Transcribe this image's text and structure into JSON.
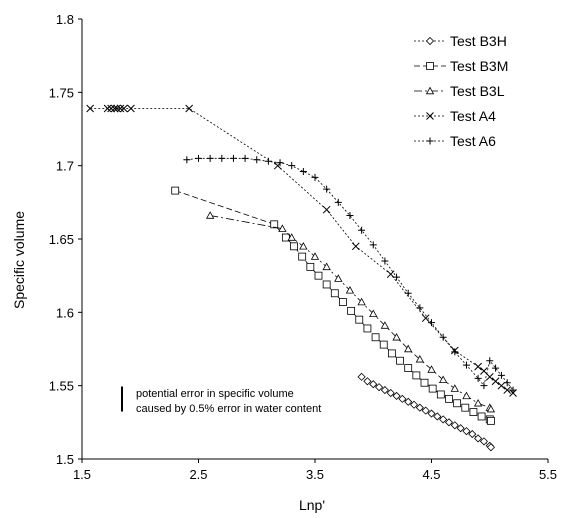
{
  "chart_data": {
    "type": "scatter",
    "title": "",
    "xlabel": "Lnp'",
    "ylabel": "Specific volume",
    "xlim": [
      1.5,
      5.5
    ],
    "ylim": [
      1.5,
      1.8
    ],
    "x_ticks": [
      "1.5",
      "2.5",
      "3.5",
      "4.5",
      "5.5"
    ],
    "y_ticks": [
      "1.5",
      "1.55",
      "1.6",
      "1.65",
      "1.7",
      "1.75",
      "1.8"
    ],
    "grid": false,
    "legend_position": "top-right",
    "annotation": {
      "line1": "potential error in specific volume",
      "line2": "caused by 0.5% error in water content",
      "error_bar_dv": 0.017
    },
    "series": [
      {
        "name": "Test B3H",
        "marker": "diamond",
        "dash": "2,2",
        "points": [
          [
            3.9,
            1.556
          ],
          [
            3.95,
            1.553
          ],
          [
            4.0,
            1.551
          ],
          [
            4.05,
            1.549
          ],
          [
            4.1,
            1.547
          ],
          [
            4.15,
            1.545
          ],
          [
            4.2,
            1.543
          ],
          [
            4.25,
            1.541
          ],
          [
            4.3,
            1.539
          ],
          [
            4.35,
            1.537
          ],
          [
            4.4,
            1.535
          ],
          [
            4.45,
            1.533
          ],
          [
            4.5,
            1.531
          ],
          [
            4.55,
            1.529
          ],
          [
            4.6,
            1.527
          ],
          [
            4.65,
            1.525
          ],
          [
            4.7,
            1.523
          ],
          [
            4.75,
            1.521
          ],
          [
            4.8,
            1.519
          ],
          [
            4.85,
            1.517
          ],
          [
            4.9,
            1.514
          ],
          [
            4.95,
            1.512
          ],
          [
            5.0,
            1.509
          ],
          [
            5.01,
            1.508
          ]
        ]
      },
      {
        "name": "Test B3M",
        "marker": "square",
        "dash": "6,3",
        "points": [
          [
            2.3,
            1.683
          ],
          [
            3.15,
            1.66
          ],
          [
            3.25,
            1.651
          ],
          [
            3.32,
            1.645
          ],
          [
            3.39,
            1.638
          ],
          [
            3.46,
            1.631
          ],
          [
            3.53,
            1.625
          ],
          [
            3.6,
            1.619
          ],
          [
            3.67,
            1.613
          ],
          [
            3.74,
            1.607
          ],
          [
            3.81,
            1.601
          ],
          [
            3.88,
            1.595
          ],
          [
            3.95,
            1.589
          ],
          [
            4.02,
            1.583
          ],
          [
            4.09,
            1.578
          ],
          [
            4.16,
            1.572
          ],
          [
            4.23,
            1.567
          ],
          [
            4.3,
            1.562
          ],
          [
            4.37,
            1.557
          ],
          [
            4.44,
            1.552
          ],
          [
            4.51,
            1.548
          ],
          [
            4.58,
            1.544
          ],
          [
            4.65,
            1.541
          ],
          [
            4.72,
            1.538
          ],
          [
            4.79,
            1.535
          ],
          [
            4.86,
            1.532
          ],
          [
            4.93,
            1.529
          ],
          [
            5.0,
            1.527
          ],
          [
            5.01,
            1.526
          ]
        ]
      },
      {
        "name": "Test B3L",
        "marker": "triangle",
        "dash": "8,3,2,3",
        "points": [
          [
            2.6,
            1.666
          ],
          [
            3.22,
            1.657
          ],
          [
            3.3,
            1.651
          ],
          [
            3.4,
            1.645
          ],
          [
            3.5,
            1.638
          ],
          [
            3.6,
            1.631
          ],
          [
            3.7,
            1.623
          ],
          [
            3.8,
            1.615
          ],
          [
            3.9,
            1.607
          ],
          [
            4.0,
            1.599
          ],
          [
            4.1,
            1.591
          ],
          [
            4.2,
            1.583
          ],
          [
            4.3,
            1.575
          ],
          [
            4.4,
            1.568
          ],
          [
            4.5,
            1.561
          ],
          [
            4.6,
            1.554
          ],
          [
            4.7,
            1.548
          ],
          [
            4.8,
            1.543
          ],
          [
            4.9,
            1.538
          ],
          [
            5.0,
            1.535
          ],
          [
            5.01,
            1.534
          ]
        ]
      },
      {
        "name": "Test A4",
        "marker": "x",
        "dash": "2,2",
        "points": [
          [
            1.57,
            1.739
          ],
          [
            1.72,
            1.739
          ],
          [
            1.75,
            1.739
          ],
          [
            1.78,
            1.739
          ],
          [
            1.8,
            1.739
          ],
          [
            1.83,
            1.739
          ],
          [
            1.86,
            1.739
          ],
          [
            1.92,
            1.739
          ],
          [
            2.42,
            1.739
          ],
          [
            3.18,
            1.7
          ],
          [
            3.6,
            1.67
          ],
          [
            3.85,
            1.645
          ],
          [
            4.15,
            1.626
          ],
          [
            4.45,
            1.596
          ],
          [
            4.7,
            1.574
          ],
          [
            4.9,
            1.563
          ],
          [
            4.95,
            1.56
          ],
          [
            5.0,
            1.556
          ],
          [
            5.05,
            1.553
          ],
          [
            5.1,
            1.55
          ],
          [
            5.15,
            1.547
          ],
          [
            5.2,
            1.545
          ]
        ]
      },
      {
        "name": "Test A6",
        "marker": "plus",
        "dash": "2,2",
        "points": [
          [
            2.4,
            1.704
          ],
          [
            2.5,
            1.705
          ],
          [
            2.6,
            1.705
          ],
          [
            2.7,
            1.705
          ],
          [
            2.8,
            1.705
          ],
          [
            2.9,
            1.705
          ],
          [
            3.0,
            1.704
          ],
          [
            3.1,
            1.703
          ],
          [
            3.2,
            1.702
          ],
          [
            3.3,
            1.7
          ],
          [
            3.4,
            1.696
          ],
          [
            3.5,
            1.692
          ],
          [
            3.6,
            1.684
          ],
          [
            3.7,
            1.675
          ],
          [
            3.8,
            1.666
          ],
          [
            3.9,
            1.656
          ],
          [
            4.0,
            1.646
          ],
          [
            4.1,
            1.635
          ],
          [
            4.2,
            1.624
          ],
          [
            4.3,
            1.613
          ],
          [
            4.4,
            1.603
          ],
          [
            4.5,
            1.593
          ],
          [
            4.6,
            1.583
          ],
          [
            4.7,
            1.573
          ],
          [
            4.8,
            1.564
          ],
          [
            4.9,
            1.555
          ],
          [
            4.95,
            1.55
          ],
          [
            5.0,
            1.567
          ],
          [
            5.05,
            1.562
          ],
          [
            5.1,
            1.557
          ],
          [
            5.15,
            1.552
          ],
          [
            5.2,
            1.547
          ]
        ]
      }
    ]
  }
}
